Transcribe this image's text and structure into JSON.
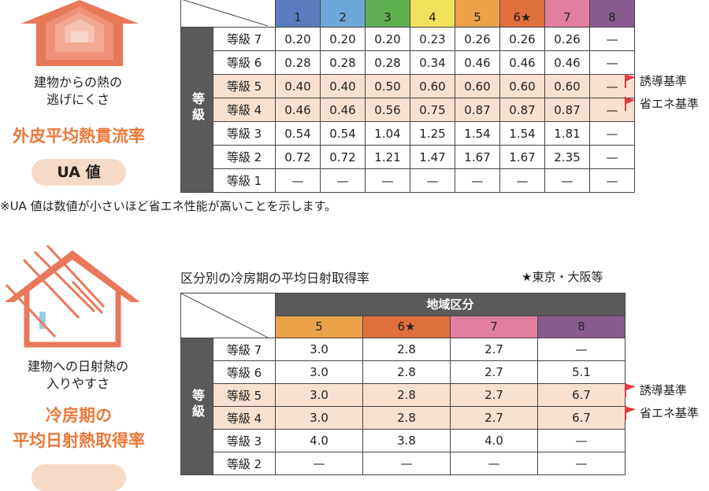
{
  "section1": {
    "caption_lines": [
      "建物からの熱の",
      "逃げにくさ"
    ],
    "title": "外皮平均熱貫流率",
    "pill": "UA 値",
    "note": "※UA 値は数値が小さいほど省エネ性能が高いことを示します。",
    "vertical_label": "等級",
    "regions": [
      {
        "label": "1",
        "color": "#5b7dbf"
      },
      {
        "label": "2",
        "color": "#6fa8d8"
      },
      {
        "label": "3",
        "color": "#5fae4f"
      },
      {
        "label": "4",
        "color": "#f2e15a"
      },
      {
        "label": "5",
        "color": "#eba24a"
      },
      {
        "label": "6★",
        "color": "#e0703b"
      },
      {
        "label": "7",
        "color": "#e27ea0"
      },
      {
        "label": "8",
        "color": "#8a5b8f"
      }
    ],
    "rows": [
      {
        "grade": "等級 7",
        "values": [
          "0.20",
          "0.20",
          "0.20",
          "0.23",
          "0.26",
          "0.26",
          "0.26",
          "—"
        ],
        "highlight": false
      },
      {
        "grade": "等級 6",
        "values": [
          "0.28",
          "0.28",
          "0.28",
          "0.34",
          "0.46",
          "0.46",
          "0.46",
          "—"
        ],
        "highlight": false
      },
      {
        "grade": "等級 5",
        "values": [
          "0.40",
          "0.40",
          "0.50",
          "0.60",
          "0.60",
          "0.60",
          "0.60",
          "—"
        ],
        "highlight": true
      },
      {
        "grade": "等級 4",
        "values": [
          "0.46",
          "0.46",
          "0.56",
          "0.75",
          "0.87",
          "0.87",
          "0.87",
          "—"
        ],
        "highlight": true
      },
      {
        "grade": "等級 3",
        "values": [
          "0.54",
          "0.54",
          "1.04",
          "1.25",
          "1.54",
          "1.54",
          "1.81",
          "—"
        ],
        "highlight": false
      },
      {
        "grade": "等級 2",
        "values": [
          "0.72",
          "0.72",
          "1.21",
          "1.47",
          "1.67",
          "1.67",
          "2.35",
          "—"
        ],
        "highlight": false
      },
      {
        "grade": "等級 1",
        "values": [
          "—",
          "—",
          "—",
          "—",
          "—",
          "—",
          "—",
          "—"
        ],
        "highlight": false
      }
    ],
    "flags": [
      "誘導基準",
      "省エネ基準"
    ]
  },
  "section2": {
    "table_title": "区分別の冷房期の平均日射取得率",
    "legend_note": "★東京・大阪等",
    "caption_lines": [
      "建物への日射熱の",
      "入りやすさ"
    ],
    "title_lines": [
      "冷房期の",
      "平均日射熱取得率"
    ],
    "vertical_label": "等級",
    "region_header": "地域区分",
    "regions": [
      {
        "label": "5",
        "color": "#eba24a"
      },
      {
        "label": "6★",
        "color": "#e0703b"
      },
      {
        "label": "7",
        "color": "#e27ea0"
      },
      {
        "label": "8",
        "color": "#8a5b8f"
      }
    ],
    "rows": [
      {
        "grade": "等級 7",
        "values": [
          "3.0",
          "2.8",
          "2.7",
          "—"
        ],
        "highlight": false
      },
      {
        "grade": "等級 6",
        "values": [
          "3.0",
          "2.8",
          "2.7",
          "5.1"
        ],
        "highlight": false
      },
      {
        "grade": "等級 5",
        "values": [
          "3.0",
          "2.8",
          "2.7",
          "6.7"
        ],
        "highlight": true
      },
      {
        "grade": "等級 4",
        "values": [
          "3.0",
          "2.8",
          "2.7",
          "6.7"
        ],
        "highlight": true
      },
      {
        "grade": "等級 3",
        "values": [
          "4.0",
          "3.8",
          "4.0",
          "—"
        ],
        "highlight": false
      },
      {
        "grade": "等級 2",
        "values": [
          "—",
          "—",
          "—",
          "—"
        ],
        "highlight": false
      }
    ],
    "flags": [
      "誘導基準",
      "省エネ基準"
    ]
  },
  "colors": {
    "accent": "#e9793a",
    "highlight_row": "#f8e0d0",
    "flag": "#e23b3b",
    "dark": "#5a5a5a"
  }
}
